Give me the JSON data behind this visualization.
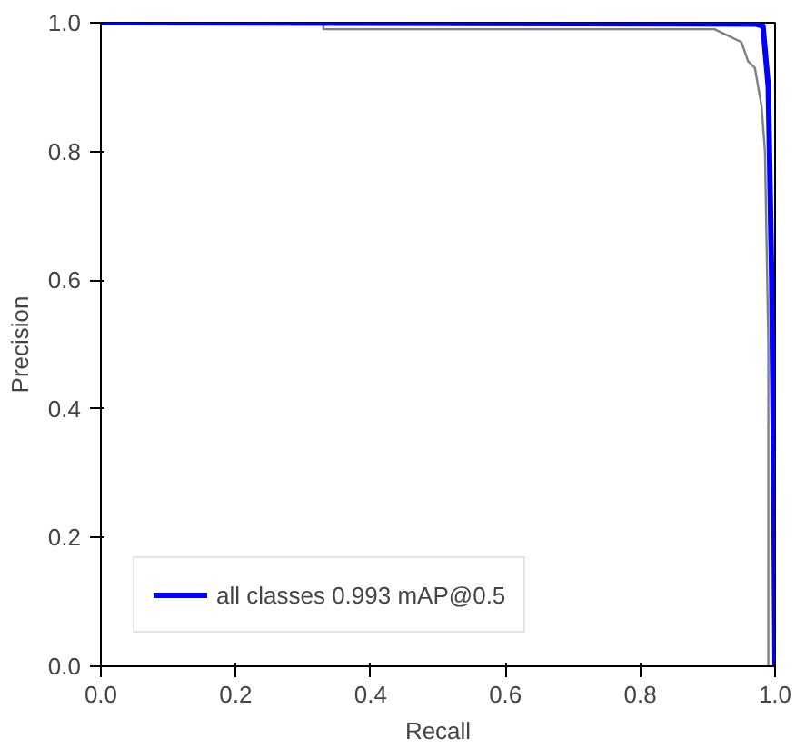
{
  "chart_data": {
    "type": "line",
    "xlabel": "Recall",
    "ylabel": "Precision",
    "xlim": [
      0,
      1
    ],
    "ylim": [
      0,
      1
    ],
    "xticks": [
      {
        "value": 0,
        "label": "0.0"
      },
      {
        "value": 0.2,
        "label": "0.2"
      },
      {
        "value": 0.4,
        "label": "0.4"
      },
      {
        "value": 0.6,
        "label": "0.6"
      },
      {
        "value": 0.8,
        "label": "0.8"
      },
      {
        "value": 1,
        "label": "1.0"
      }
    ],
    "yticks": [
      {
        "value": 0,
        "label": "0.0"
      },
      {
        "value": 0.2,
        "label": "0.2"
      },
      {
        "value": 0.4,
        "label": "0.4"
      },
      {
        "value": 0.6,
        "label": "0.6"
      },
      {
        "value": 0.8,
        "label": "0.8"
      },
      {
        "value": 1,
        "label": "1.0"
      }
    ],
    "grid": false,
    "legend": "bottom left",
    "marker": "none",
    "line_style": "solid",
    "series": [
      {
        "color": "#808080",
        "x": [
          0,
          0.33,
          0.33,
          0.45,
          0.45,
          0.91,
          0.93,
          0.95,
          0.955,
          0.96,
          0.97,
          0.975,
          0.98,
          0.985,
          0.99,
          0.99
        ],
        "values": [
          1,
          1,
          0.99,
          0.99,
          0.99,
          0.99,
          0.98,
          0.97,
          0.955,
          0.94,
          0.93,
          0.9,
          0.87,
          0.8,
          0.5,
          0
        ]
      },
      {
        "name": "all classes 0.993 mAP@0.5",
        "color": "#0000ff",
        "x": [
          0,
          0.97,
          0.982,
          0.99,
          0.995,
          0.998,
          1
        ],
        "values": [
          1,
          0.998,
          0.995,
          0.9,
          0.6,
          0.3,
          0
        ]
      }
    ]
  }
}
